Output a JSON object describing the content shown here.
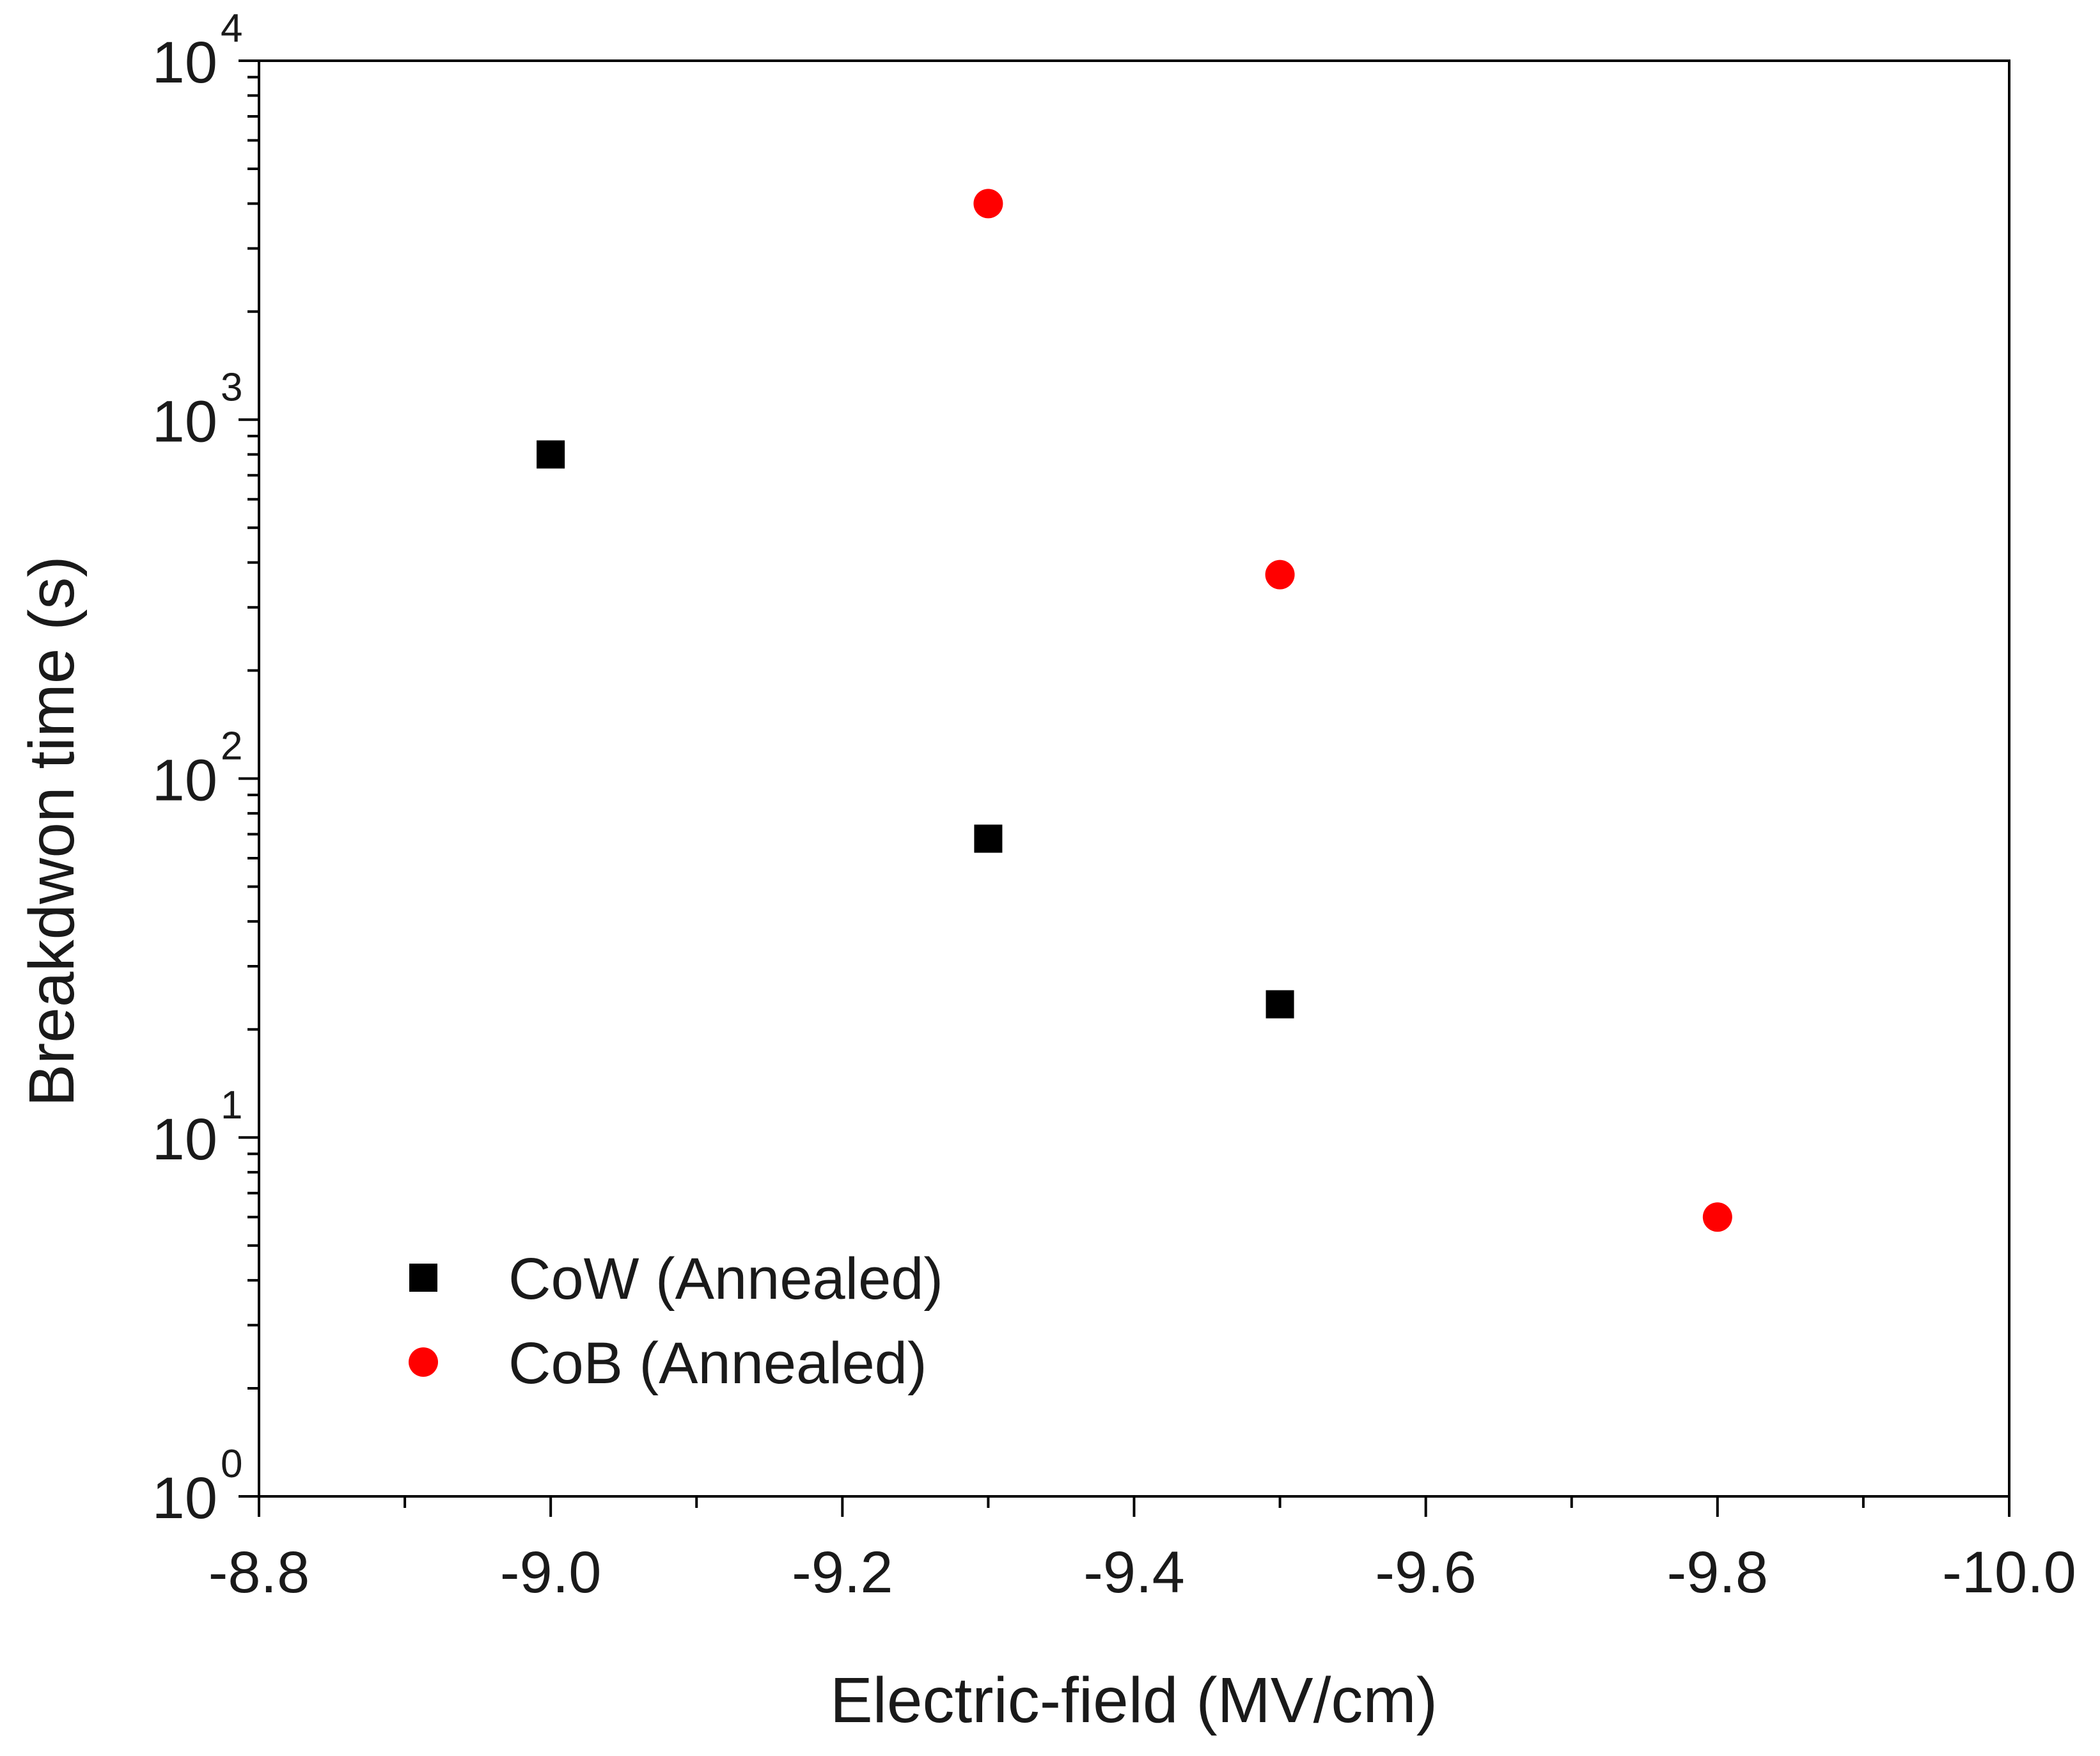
{
  "chart_data": {
    "type": "scatter",
    "title": "",
    "xlabel": "Electric-field (MV/cm)",
    "ylabel": "Breakdwon time (s)",
    "xlim": [
      -8.8,
      -10.0
    ],
    "ylim": [
      1,
      10000
    ],
    "yscale": "log",
    "grid": false,
    "legend_position": "bottom-left",
    "x_ticks": [
      -8.8,
      -9.0,
      -9.2,
      -9.4,
      -9.6,
      -9.8,
      -10.0
    ],
    "x_tick_labels": [
      "-8.8",
      "-9.0",
      "-9.2",
      "-9.4",
      "-9.6",
      "-9.8",
      "-10.0"
    ],
    "y_ticks": [
      1,
      10,
      100,
      1000,
      10000
    ],
    "y_tick_labels": [
      {
        "base": "10",
        "exp": "0"
      },
      {
        "base": "10",
        "exp": "1"
      },
      {
        "base": "10",
        "exp": "2"
      },
      {
        "base": "10",
        "exp": "3"
      },
      {
        "base": "10",
        "exp": "4"
      }
    ],
    "series": [
      {
        "name": "CoW (Annealed)",
        "marker": "square",
        "color": "#000000",
        "x": [
          -9.0,
          -9.3,
          -9.5
        ],
        "y": [
          800,
          68,
          23.5
        ]
      },
      {
        "name": "CoB (Annealed)",
        "marker": "circle",
        "color": "#ff0000",
        "x": [
          -9.3,
          -9.5,
          -9.8
        ],
        "y": [
          4000,
          370,
          6
        ]
      }
    ]
  }
}
